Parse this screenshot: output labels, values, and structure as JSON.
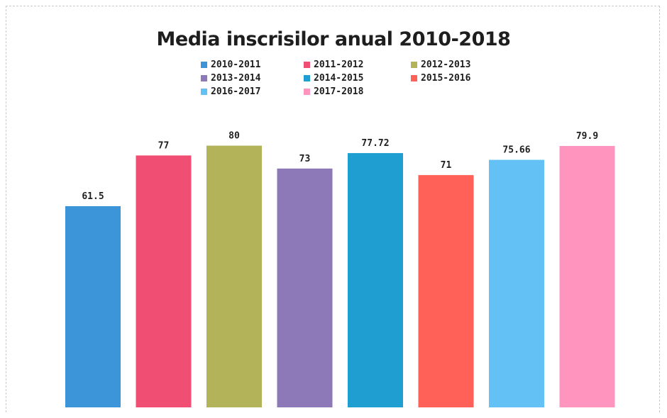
{
  "chart_data": {
    "type": "bar",
    "title": "Media inscrisilor anual 2010-2018",
    "categories": [
      "2010-2011",
      "2011-2012",
      "2012-2013",
      "2013-2014",
      "2014-2015",
      "2015-2016",
      "2016-2017",
      "2017-2018"
    ],
    "values": [
      61.5,
      77,
      80,
      73,
      77.72,
      71,
      75.66,
      79.9
    ],
    "value_labels": [
      "61.5",
      "77",
      "80",
      "73",
      "77.72",
      "71",
      "75.66",
      "79.9"
    ],
    "colors": [
      "#3d95d9",
      "#f04f73",
      "#b3b35a",
      "#8d79b8",
      "#1e9ed1",
      "#ff6158",
      "#63c1f5",
      "#ff95bf"
    ],
    "legend_position": "top",
    "grid": false,
    "xlabel": "",
    "ylabel": ""
  }
}
